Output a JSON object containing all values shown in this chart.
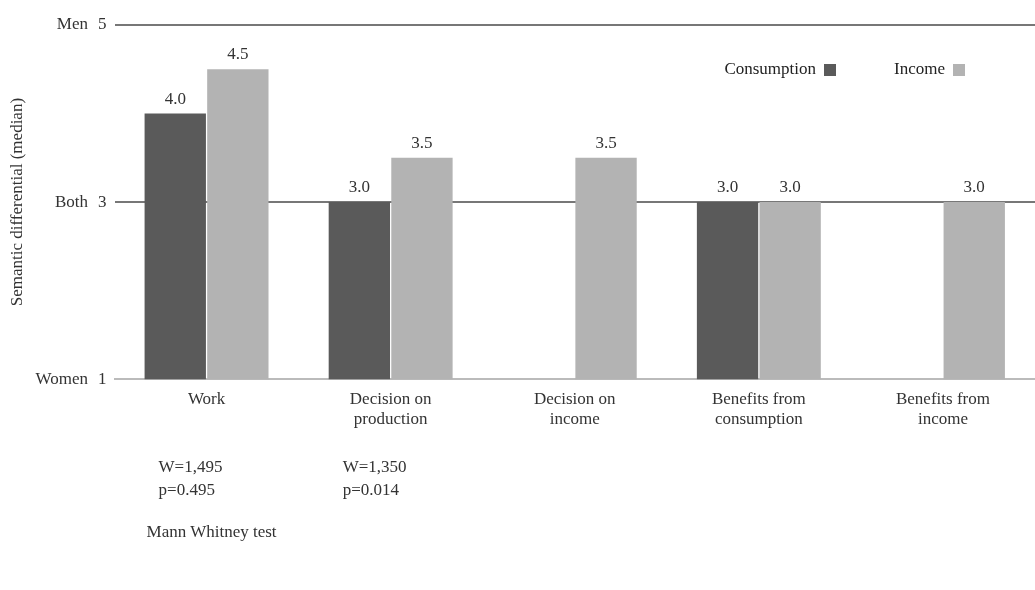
{
  "chart_data": {
    "type": "bar",
    "ylabel": "Semantic differential (median)",
    "categories": [
      "Work",
      "Decision on production",
      "Decision on income",
      "Benefits from consumption",
      "Benefits from income"
    ],
    "series": [
      {
        "name": "Consumption",
        "color": "#5a5a5a",
        "values": [
          4.0,
          3.0,
          null,
          3.0,
          null
        ],
        "value_labels": [
          "4.0",
          "3.0",
          null,
          "3.0",
          null
        ]
      },
      {
        "name": "Income",
        "color": "#b3b3b3",
        "values": [
          4.5,
          3.5,
          3.5,
          3.0,
          3.0
        ],
        "value_labels": [
          "4.5",
          "3.5",
          "3.5",
          "3.0",
          "3.0"
        ]
      }
    ],
    "ylim": [
      1,
      5
    ],
    "yticks": [
      1,
      3,
      5
    ],
    "grid": "y",
    "legend": "top right",
    "annotations": [
      "W=1,495\np=0.495",
      "W=1,350\np=0.014",
      "Mann Whitney test",
      "Women",
      "Both",
      "Men"
    ]
  }
}
